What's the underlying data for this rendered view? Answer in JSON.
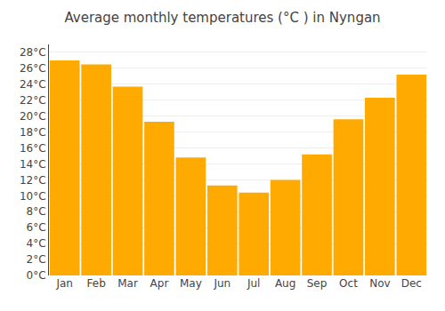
{
  "chart_data": {
    "type": "bar",
    "title": "Average monthly temperatures (°C ) in Nyngan",
    "categories": [
      "Jan",
      "Feb",
      "Mar",
      "Apr",
      "May",
      "Jun",
      "Jul",
      "Aug",
      "Sep",
      "Oct",
      "Nov",
      "Dec"
    ],
    "values": [
      27.0,
      26.5,
      23.7,
      19.3,
      14.8,
      11.3,
      10.4,
      12.0,
      15.2,
      19.6,
      22.3,
      25.2
    ],
    "color": "#FFAA00",
    "ylim": [
      0,
      29
    ],
    "yticks": [
      {
        "value": 0,
        "label": "0°C"
      },
      {
        "value": 2,
        "label": "2°C"
      },
      {
        "value": 4,
        "label": "4°C"
      },
      {
        "value": 6,
        "label": "6°C"
      },
      {
        "value": 8,
        "label": "8°C"
      },
      {
        "value": 10,
        "label": "10°C"
      },
      {
        "value": 12,
        "label": "12°C"
      },
      {
        "value": 14,
        "label": "14°C"
      },
      {
        "value": 16,
        "label": "16°C"
      },
      {
        "value": 18,
        "label": "18°C"
      },
      {
        "value": 20,
        "label": "20°C"
      },
      {
        "value": 22,
        "label": "22°C"
      },
      {
        "value": 24,
        "label": "24°C"
      },
      {
        "value": 26,
        "label": "26°C"
      },
      {
        "value": 28,
        "label": "28°C"
      }
    ],
    "grid": true
  }
}
